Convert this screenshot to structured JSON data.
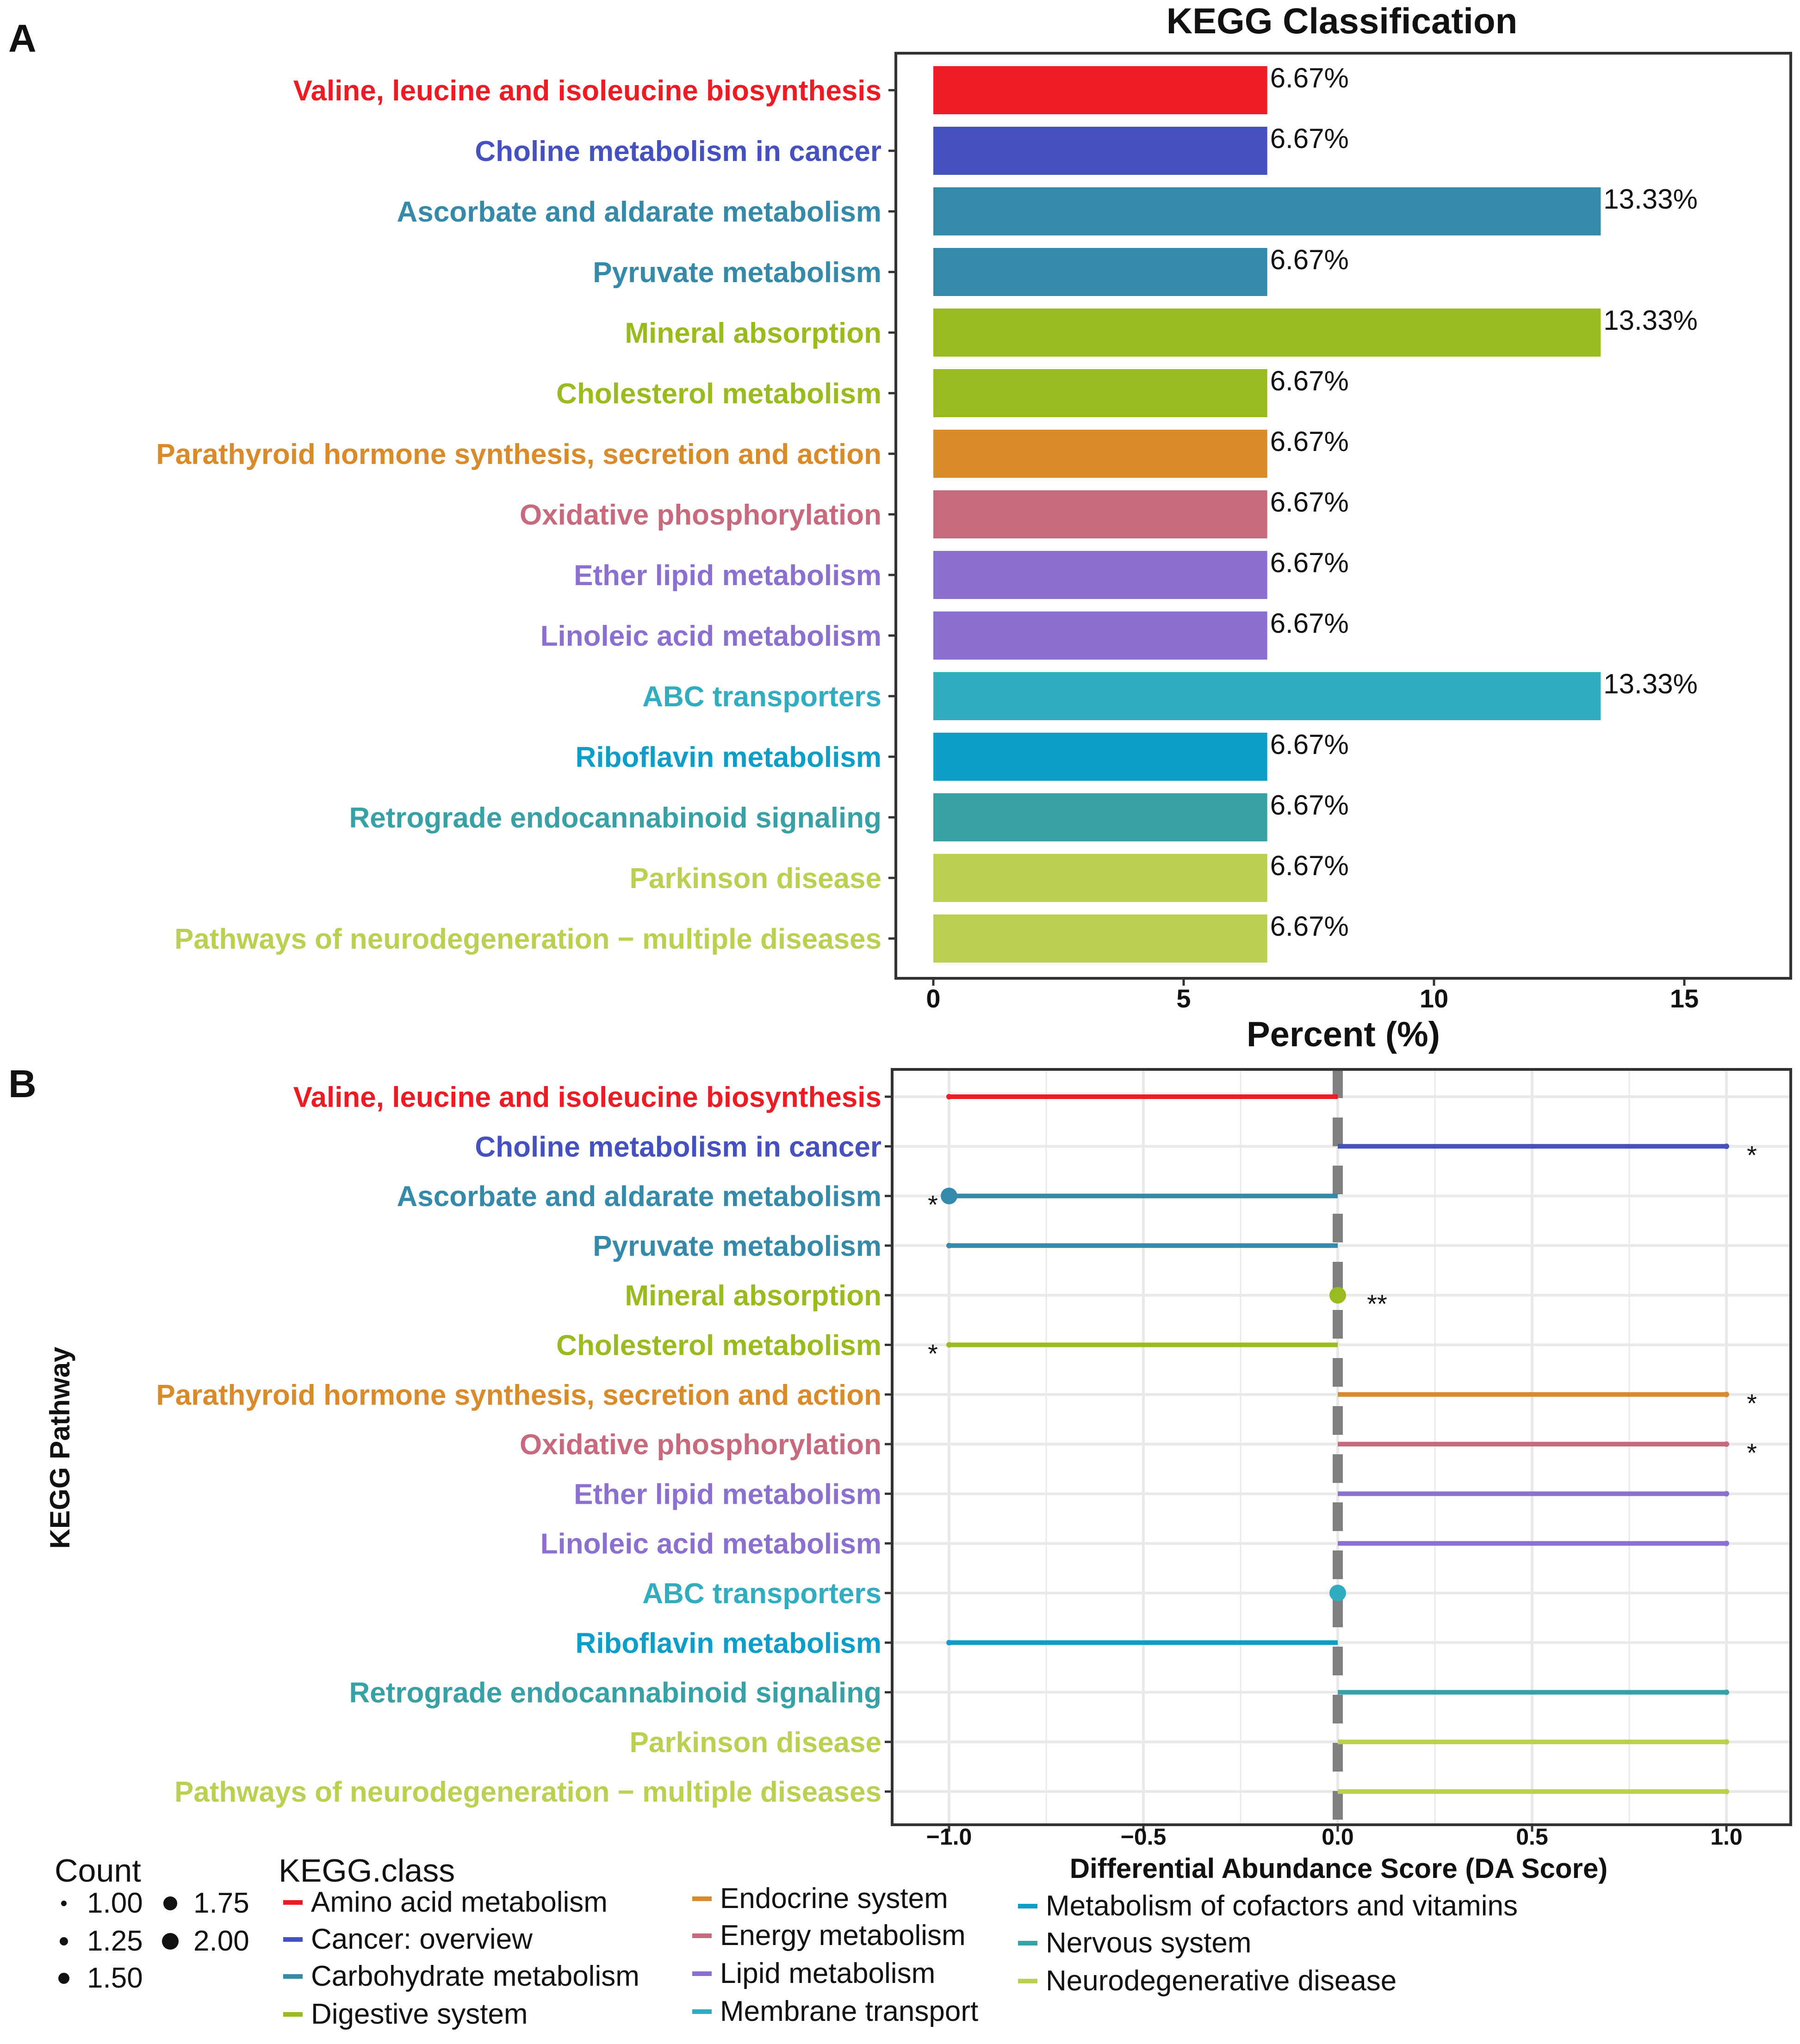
{
  "panel_a_letter": "A",
  "panel_b_letter": "B",
  "chart_data": [
    {
      "type": "bar",
      "orientation": "horizontal",
      "title": "KEGG Classification",
      "xlabel": "Percent (%)",
      "ylabel": "",
      "xlim": [
        0,
        17
      ],
      "xticks": [
        0,
        5,
        10,
        15
      ],
      "categories": [
        "Valine, leucine and isoleucine biosynthesis",
        "Choline metabolism in cancer",
        "Ascorbate and aldarate metabolism",
        "Pyruvate metabolism",
        "Mineral absorption",
        "Cholesterol metabolism",
        "Parathyroid hormone synthesis, secretion and action",
        "Oxidative phosphorylation",
        "Ether lipid metabolism",
        "Linoleic acid metabolism",
        "ABC transporters",
        "Riboflavin metabolism",
        "Retrograde endocannabinoid signaling",
        "Parkinson disease",
        "Pathways of neurodegeneration − multiple diseases"
      ],
      "values": [
        6.67,
        6.67,
        13.33,
        6.67,
        13.33,
        6.67,
        6.67,
        6.67,
        6.67,
        6.67,
        13.33,
        6.67,
        6.67,
        6.67,
        6.67
      ],
      "data_labels": [
        "6.67%",
        "6.67%",
        "13.33%",
        "6.67%",
        "13.33%",
        "6.67%",
        "6.67%",
        "6.67%",
        "6.67%",
        "6.67%",
        "13.33%",
        "6.67%",
        "6.67%",
        "6.67%",
        "6.67%"
      ],
      "colors": [
        "#ED1C24",
        "#4651C0",
        "#368AA9",
        "#368AA9",
        "#99BB1F",
        "#99BB1F",
        "#D98A2A",
        "#C86A7E",
        "#8C70D0",
        "#8C70D0",
        "#32ADC0",
        "#0C9EC8",
        "#38A1A6",
        "#BAD051",
        "#BAD051"
      ],
      "grid": false
    },
    {
      "type": "scatter",
      "subtype": "lollipop",
      "xlabel": "Differential Abundance Score (DA Score)",
      "ylabel": "KEGG Pathway",
      "xlim": [
        -1.15,
        1.15
      ],
      "xticks": [
        -1.0,
        -0.5,
        0.0,
        0.5,
        1.0
      ],
      "xtick_labels": [
        "−1.0",
        "−0.5",
        "0.0",
        "0.5",
        "1.0"
      ],
      "grid": true,
      "reference_line": 0.0,
      "categories": [
        "Valine, leucine and isoleucine biosynthesis",
        "Choline metabolism in cancer",
        "Ascorbate and aldarate metabolism",
        "Pyruvate metabolism",
        "Mineral absorption",
        "Cholesterol metabolism",
        "Parathyroid hormone synthesis, secretion and action",
        "Oxidative phosphorylation",
        "Ether lipid metabolism",
        "Linoleic acid metabolism",
        "ABC transporters",
        "Riboflavin metabolism",
        "Retrograde endocannabinoid signaling",
        "Parkinson disease",
        "Pathways of neurodegeneration − multiple diseases"
      ],
      "da_scores": [
        -1,
        1,
        -1,
        -1,
        0,
        -1,
        1,
        1,
        1,
        1,
        0,
        -1,
        1,
        1,
        1
      ],
      "counts": [
        1,
        1,
        2,
        1,
        2,
        1,
        1,
        1,
        1,
        1,
        2,
        1,
        1,
        1,
        1
      ],
      "significance": [
        "",
        "*",
        "*",
        "",
        "**",
        "*",
        "*",
        "*",
        "",
        "",
        "",
        "",
        "",
        "",
        ""
      ],
      "kegg_class": [
        "Amino acid metabolism",
        "Cancer: overview",
        "Carbohydrate metabolism",
        "Carbohydrate metabolism",
        "Digestive system",
        "Digestive system",
        "Endocrine system",
        "Energy metabolism",
        "Lipid metabolism",
        "Lipid metabolism",
        "Membrane transport",
        "Metabolism of cofactors and vitamins",
        "Nervous system",
        "Neurodegenerative disease",
        "Neurodegenerative disease"
      ],
      "colors": [
        "#ED1C24",
        "#4651C0",
        "#368AA9",
        "#368AA9",
        "#99BB1F",
        "#99BB1F",
        "#D98A2A",
        "#C86A7E",
        "#8C70D0",
        "#8C70D0",
        "#32ADC0",
        "#0C9EC8",
        "#38A1A6",
        "#BAD051",
        "#BAD051"
      ]
    }
  ],
  "legend": {
    "count_title": "Count",
    "count_items": [
      {
        "label": "1.00",
        "value": 1.0
      },
      {
        "label": "1.25",
        "value": 1.25
      },
      {
        "label": "1.50",
        "value": 1.5
      },
      {
        "label": "1.75",
        "value": 1.75
      },
      {
        "label": "2.00",
        "value": 2.0
      }
    ],
    "class_title": "KEGG.class",
    "class_items": [
      {
        "label": "Amino acid metabolism",
        "color": "#ED1C24"
      },
      {
        "label": "Cancer: overview",
        "color": "#4651C0"
      },
      {
        "label": "Carbohydrate metabolism",
        "color": "#368AA9"
      },
      {
        "label": "Digestive system",
        "color": "#99BB1F"
      },
      {
        "label": "Endocrine system",
        "color": "#D98A2A"
      },
      {
        "label": "Energy metabolism",
        "color": "#C86A7E"
      },
      {
        "label": "Lipid metabolism",
        "color": "#8C70D0"
      },
      {
        "label": "Membrane transport",
        "color": "#32ADC0"
      },
      {
        "label": "Metabolism of cofactors and vitamins",
        "color": "#0C9EC8"
      },
      {
        "label": "Nervous system",
        "color": "#38A1A6"
      },
      {
        "label": "Neurodegenerative disease",
        "color": "#BAD051"
      }
    ]
  }
}
